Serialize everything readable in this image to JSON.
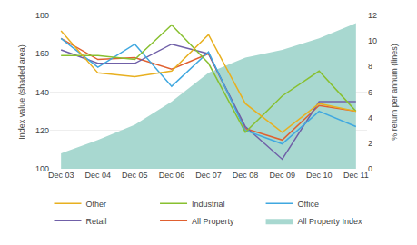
{
  "chart_data": {
    "type": "line",
    "categories": [
      "Dec 03",
      "Dec 04",
      "Dec 05",
      "Dec 06",
      "Dec 07",
      "Dec 08",
      "Dec 09",
      "Dec 10",
      "Dec 11"
    ],
    "series": [
      {
        "name": "All Property Index",
        "type": "area",
        "color": "#a8d8d0",
        "values": [
          108,
          115,
          123,
          135,
          150,
          158,
          162,
          168,
          176
        ],
        "bottom": [
          100,
          100,
          100,
          100,
          100,
          100,
          100,
          100,
          100
        ]
      },
      {
        "name": "All Property",
        "color": "#e06030",
        "values": [
          168,
          157,
          158,
          152,
          160,
          121,
          115,
          133,
          130
        ]
      },
      {
        "name": "Retail",
        "color": "#7060a8",
        "values": [
          162,
          155,
          155,
          165,
          160,
          122,
          105,
          135,
          135
        ]
      },
      {
        "name": "Office",
        "color": "#40a8e0",
        "values": [
          168,
          153,
          165,
          143,
          161,
          120,
          113,
          130,
          122
        ]
      },
      {
        "name": "Industrial",
        "color": "#88c030",
        "values": [
          159,
          159,
          157,
          175,
          155,
          119,
          138,
          151,
          130
        ]
      },
      {
        "name": "Other",
        "color": "#e8b020",
        "values": [
          172,
          150,
          148,
          151,
          170,
          134,
          119,
          134,
          130
        ]
      }
    ],
    "ylim": [
      100,
      180
    ],
    "yticks": [
      100,
      120,
      140,
      160,
      180
    ],
    "y2lim": [
      0,
      12
    ],
    "y2ticks": [
      0,
      2,
      4,
      6,
      8,
      10,
      12
    ],
    "ylabel": "Index value (shaded area)",
    "y2label": "% return per annum (lines)",
    "grid": true,
    "legend": "bottom"
  }
}
